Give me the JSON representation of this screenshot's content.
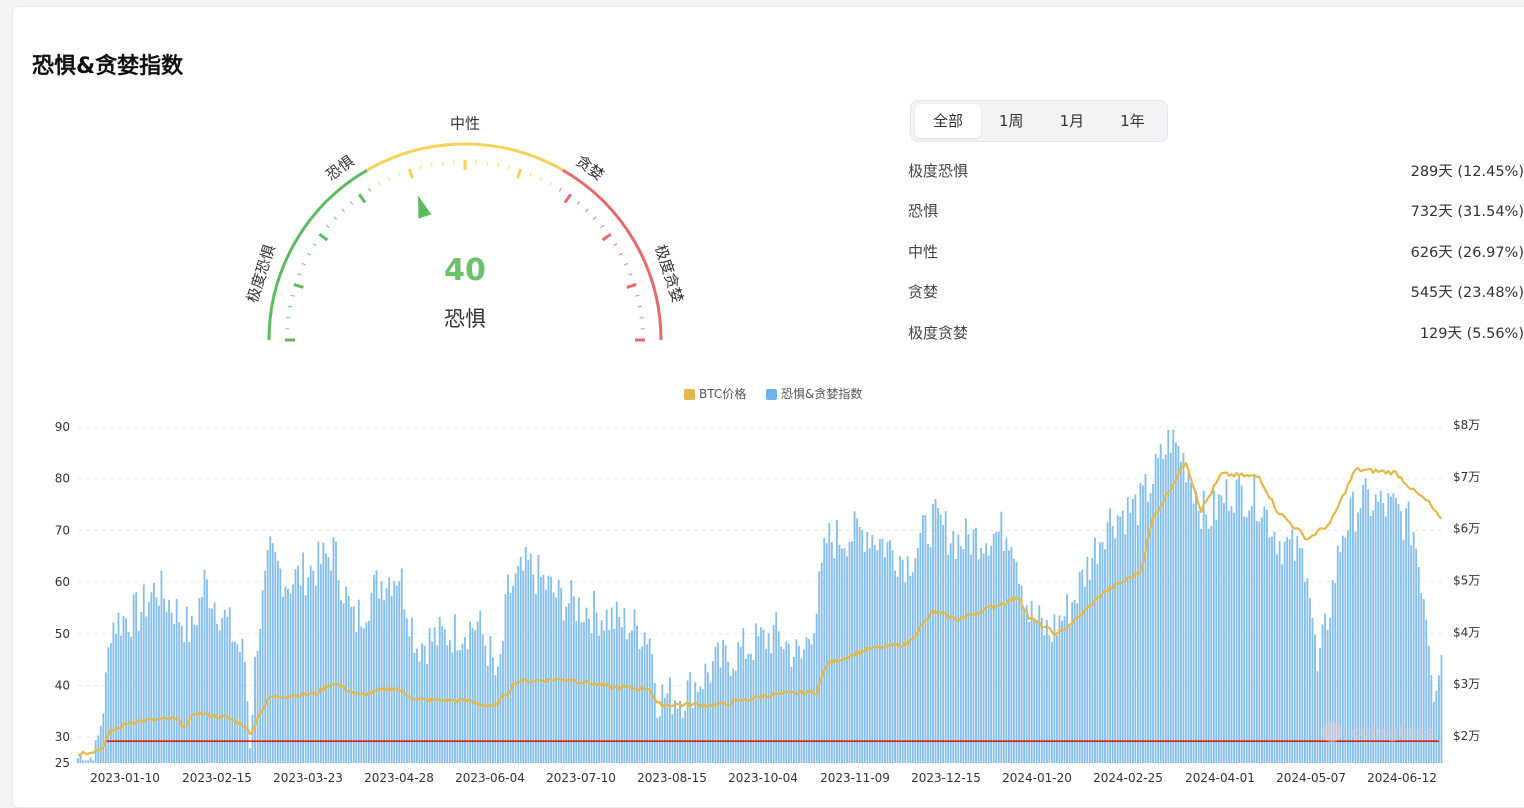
{
  "title": "恐惧&贪婪指数",
  "gauge": {
    "value": 40,
    "status": "恐惧",
    "min": 0,
    "max": 100,
    "labels": [
      "极度恐惧",
      "恐惧",
      "中性",
      "贪婪",
      "极度贪婪"
    ],
    "colors": {
      "fear": "#5dbb5f",
      "neutral": "#f5d35a",
      "greed": "#e36b6b"
    }
  },
  "tabs": [
    {
      "label": "全部",
      "active": true
    },
    {
      "label": "1周",
      "active": false
    },
    {
      "label": "1月",
      "active": false
    },
    {
      "label": "1年",
      "active": false
    }
  ],
  "stats": [
    {
      "label": "极度恐惧",
      "value": "289天 (12.45%)"
    },
    {
      "label": "恐惧",
      "value": "732天 (31.54%)"
    },
    {
      "label": "中性",
      "value": "626天 (26.97%)"
    },
    {
      "label": "贪婪",
      "value": "545天 (23.48%)"
    },
    {
      "label": "极度贪婪",
      "value": "129天 (5.56%)"
    }
  ],
  "chart_data": {
    "type": "bar",
    "legend": [
      {
        "name": "BTC价格",
        "color": "#e6b84a"
      },
      {
        "name": "恐惧&贪婪指数",
        "color": "#6fb3ea"
      }
    ],
    "legend_position": "top-center",
    "x_ticks": [
      "2023-01-10",
      "2023-02-15",
      "2023-03-23",
      "2023-04-28",
      "2023-06-04",
      "2023-07-10",
      "2023-08-15",
      "2023-10-04",
      "2023-11-09",
      "2023-12-15",
      "2024-01-20",
      "2024-02-25",
      "2024-04-01",
      "2024-05-07",
      "2024-06-12"
    ],
    "y_left": {
      "ticks": [
        "25",
        "30",
        "40",
        "50",
        "60",
        "70",
        "80",
        "90"
      ],
      "range": [
        25,
        90
      ]
    },
    "y_right": {
      "ticks": [
        "$2万",
        "$3万",
        "$4万",
        "$5万",
        "$6万",
        "$7万",
        "$8万"
      ],
      "range": [
        20000,
        80000
      ]
    },
    "reference_line": {
      "value": 30,
      "color": "#d81e1e"
    },
    "fear_greed_series": [
      {
        "date": "2023-01-01",
        "value": 26
      },
      {
        "date": "2023-01-08",
        "value": 26
      },
      {
        "date": "2023-01-12",
        "value": 40
      },
      {
        "date": "2023-01-14",
        "value": 52
      },
      {
        "date": "2023-01-25",
        "value": 54
      },
      {
        "date": "2023-02-01",
        "value": 59
      },
      {
        "date": "2023-02-08",
        "value": 55
      },
      {
        "date": "2023-02-15",
        "value": 50
      },
      {
        "date": "2023-02-20",
        "value": 60
      },
      {
        "date": "2023-02-28",
        "value": 53
      },
      {
        "date": "2023-03-08",
        "value": 45
      },
      {
        "date": "2023-03-10",
        "value": 30
      },
      {
        "date": "2023-03-13",
        "value": 50
      },
      {
        "date": "2023-03-18",
        "value": 65
      },
      {
        "date": "2023-03-25",
        "value": 60
      },
      {
        "date": "2023-04-05",
        "value": 63
      },
      {
        "date": "2023-04-12",
        "value": 66
      },
      {
        "date": "2023-04-20",
        "value": 52
      },
      {
        "date": "2023-04-30",
        "value": 60
      },
      {
        "date": "2023-05-08",
        "value": 62
      },
      {
        "date": "2023-05-15",
        "value": 48
      },
      {
        "date": "2023-05-28",
        "value": 50
      },
      {
        "date": "2023-06-08",
        "value": 52
      },
      {
        "date": "2023-06-13",
        "value": 46
      },
      {
        "date": "2023-06-16",
        "value": 40
      },
      {
        "date": "2023-06-20",
        "value": 58
      },
      {
        "date": "2023-06-28",
        "value": 63
      },
      {
        "date": "2023-07-10",
        "value": 57
      },
      {
        "date": "2023-07-25",
        "value": 54
      },
      {
        "date": "2023-08-05",
        "value": 52
      },
      {
        "date": "2023-08-15",
        "value": 50
      },
      {
        "date": "2023-08-18",
        "value": 38
      },
      {
        "date": "2023-08-28",
        "value": 38
      },
      {
        "date": "2023-09-10",
        "value": 44
      },
      {
        "date": "2023-09-25",
        "value": 48
      },
      {
        "date": "2023-10-04",
        "value": 50
      },
      {
        "date": "2023-10-14",
        "value": 45
      },
      {
        "date": "2023-10-20",
        "value": 55
      },
      {
        "date": "2023-10-24",
        "value": 68
      },
      {
        "date": "2023-11-09",
        "value": 70
      },
      {
        "date": "2023-11-25",
        "value": 64
      },
      {
        "date": "2023-12-05",
        "value": 72
      },
      {
        "date": "2023-12-15",
        "value": 68
      },
      {
        "date": "2024-01-05",
        "value": 70
      },
      {
        "date": "2024-01-12",
        "value": 54
      },
      {
        "date": "2024-01-20",
        "value": 50
      },
      {
        "date": "2024-01-28",
        "value": 55
      },
      {
        "date": "2024-02-05",
        "value": 64
      },
      {
        "date": "2024-02-12",
        "value": 72
      },
      {
        "date": "2024-02-25",
        "value": 75
      },
      {
        "date": "2024-03-01",
        "value": 80
      },
      {
        "date": "2024-03-08",
        "value": 88
      },
      {
        "date": "2024-03-14",
        "value": 83
      },
      {
        "date": "2024-03-22",
        "value": 72
      },
      {
        "date": "2024-04-01",
        "value": 78
      },
      {
        "date": "2024-04-12",
        "value": 76
      },
      {
        "date": "2024-04-20",
        "value": 68
      },
      {
        "date": "2024-05-01",
        "value": 64
      },
      {
        "date": "2024-05-05",
        "value": 42
      },
      {
        "date": "2024-05-15",
        "value": 70
      },
      {
        "date": "2024-05-22",
        "value": 76
      },
      {
        "date": "2024-06-05",
        "value": 74
      },
      {
        "date": "2024-06-12",
        "value": 70
      },
      {
        "date": "2024-06-17",
        "value": 55
      },
      {
        "date": "2024-06-20",
        "value": 40
      },
      {
        "date": "2024-06-23",
        "value": 46
      }
    ],
    "btc_price_series": [
      {
        "date": "2023-01-01",
        "value": 16600
      },
      {
        "date": "2023-01-10",
        "value": 17400
      },
      {
        "date": "2023-01-14",
        "value": 20800
      },
      {
        "date": "2023-01-22",
        "value": 22800
      },
      {
        "date": "2023-02-08",
        "value": 23300
      },
      {
        "date": "2023-02-13",
        "value": 21800
      },
      {
        "date": "2023-02-16",
        "value": 24500
      },
      {
        "date": "2023-03-01",
        "value": 23500
      },
      {
        "date": "2023-03-08",
        "value": 22000
      },
      {
        "date": "2023-03-10",
        "value": 20200
      },
      {
        "date": "2023-03-14",
        "value": 24500
      },
      {
        "date": "2023-03-18",
        "value": 27500
      },
      {
        "date": "2023-04-05",
        "value": 28200
      },
      {
        "date": "2023-04-12",
        "value": 30300
      },
      {
        "date": "2023-04-22",
        "value": 27800
      },
      {
        "date": "2023-05-06",
        "value": 29300
      },
      {
        "date": "2023-05-15",
        "value": 27000
      },
      {
        "date": "2023-06-05",
        "value": 26800
      },
      {
        "date": "2023-06-14",
        "value": 25500
      },
      {
        "date": "2023-06-20",
        "value": 28500
      },
      {
        "date": "2023-06-23",
        "value": 30500
      },
      {
        "date": "2023-07-14",
        "value": 31000
      },
      {
        "date": "2023-08-01",
        "value": 29300
      },
      {
        "date": "2023-08-15",
        "value": 29200
      },
      {
        "date": "2023-08-18",
        "value": 26100
      },
      {
        "date": "2023-09-12",
        "value": 26000
      },
      {
        "date": "2023-10-01",
        "value": 27900
      },
      {
        "date": "2023-10-20",
        "value": 28500
      },
      {
        "date": "2023-10-24",
        "value": 33900
      },
      {
        "date": "2023-11-09",
        "value": 36700
      },
      {
        "date": "2023-11-25",
        "value": 37800
      },
      {
        "date": "2023-12-05",
        "value": 44000
      },
      {
        "date": "2023-12-15",
        "value": 42500
      },
      {
        "date": "2024-01-08",
        "value": 46800
      },
      {
        "date": "2024-01-12",
        "value": 42800
      },
      {
        "date": "2024-01-23",
        "value": 39500
      },
      {
        "date": "2024-02-01",
        "value": 43100
      },
      {
        "date": "2024-02-10",
        "value": 47500
      },
      {
        "date": "2024-02-25",
        "value": 51700
      },
      {
        "date": "2024-03-01",
        "value": 62000
      },
      {
        "date": "2024-03-14",
        "value": 73000
      },
      {
        "date": "2024-03-20",
        "value": 63500
      },
      {
        "date": "2024-03-28",
        "value": 70500
      },
      {
        "date": "2024-04-12",
        "value": 70000
      },
      {
        "date": "2024-04-19",
        "value": 63500
      },
      {
        "date": "2024-05-01",
        "value": 58000
      },
      {
        "date": "2024-05-10",
        "value": 61000
      },
      {
        "date": "2024-05-20",
        "value": 71400
      },
      {
        "date": "2024-06-05",
        "value": 70800
      },
      {
        "date": "2024-06-12",
        "value": 67300
      },
      {
        "date": "2024-06-18",
        "value": 65000
      },
      {
        "date": "2024-06-23",
        "value": 61500
      }
    ]
  },
  "watermark": "coinglass"
}
